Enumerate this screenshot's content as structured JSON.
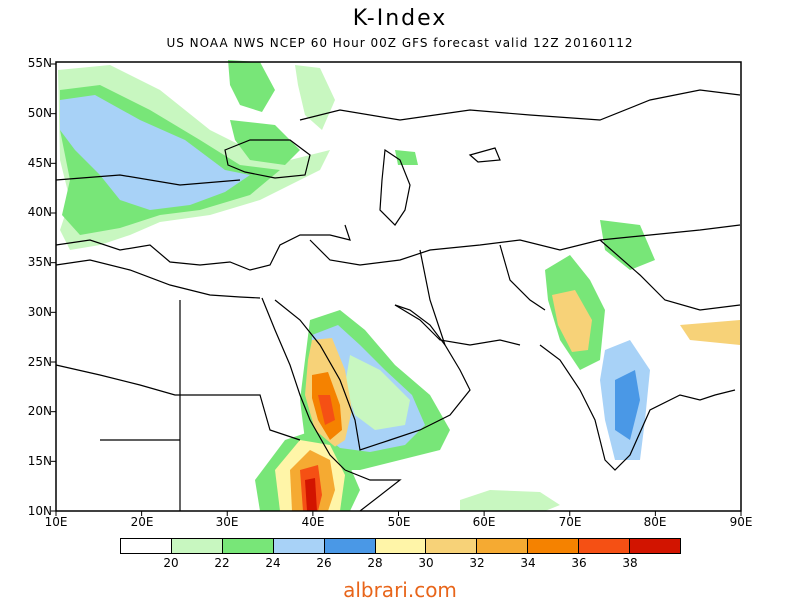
{
  "title": "K-Index",
  "subtitle": "US NOAA NWS NCEP 60 Hour 00Z GFS forecast valid 12Z 20160112",
  "credit": "albrari.com",
  "map": {
    "lat_labels": [
      "55N",
      "50N",
      "45N",
      "40N",
      "35N",
      "30N",
      "25N",
      "20N",
      "15N",
      "10N"
    ],
    "lon_labels": [
      "10E",
      "20E",
      "30E",
      "40E",
      "50E",
      "60E",
      "70E",
      "80E",
      "90E"
    ]
  },
  "legend": {
    "values": [
      "20",
      "22",
      "24",
      "26",
      "28",
      "30",
      "32",
      "34",
      "36",
      "38"
    ],
    "colors": [
      "#ffffff",
      "#c8f7c0",
      "#78e678",
      "#a8d2f7",
      "#4a98e6",
      "#fff5a8",
      "#f7d278",
      "#f5aa32",
      "#f58200",
      "#f55014",
      "#d21400"
    ]
  }
}
